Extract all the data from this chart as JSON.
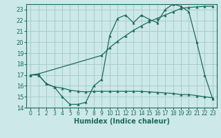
{
  "xlabel": "Humidex (Indice chaleur)",
  "xlim": [
    -0.5,
    23.5
  ],
  "ylim": [
    14,
    23.5
  ],
  "yticks": [
    14,
    15,
    16,
    17,
    18,
    19,
    20,
    21,
    22,
    23
  ],
  "xticks": [
    0,
    1,
    2,
    3,
    4,
    5,
    6,
    7,
    8,
    9,
    10,
    11,
    12,
    13,
    14,
    15,
    16,
    17,
    18,
    19,
    20,
    21,
    22,
    23
  ],
  "bg_color": "#cce8e8",
  "grid_color": "#a8cccc",
  "line_color": "#1a6b5a",
  "line1_x": [
    0,
    1,
    2,
    3,
    4,
    5,
    6,
    7,
    8,
    9,
    10,
    11,
    12,
    13,
    14,
    15,
    16,
    17,
    18,
    19,
    20,
    21,
    22,
    23
  ],
  "line1_y": [
    17.0,
    17.0,
    16.2,
    15.9,
    15.0,
    14.3,
    14.3,
    14.5,
    16.0,
    16.6,
    20.6,
    22.2,
    22.5,
    21.8,
    22.5,
    22.1,
    21.8,
    23.0,
    23.5,
    23.3,
    22.8,
    20.0,
    17.0,
    14.8
  ],
  "line2_x": [
    0,
    1,
    9,
    10,
    11,
    12,
    13,
    14,
    15,
    16,
    17,
    18,
    19,
    20,
    21,
    22,
    23
  ],
  "line2_y": [
    17.0,
    17.1,
    18.8,
    19.5,
    20.1,
    20.6,
    21.1,
    21.5,
    21.9,
    22.2,
    22.5,
    22.8,
    23.1,
    23.2,
    23.25,
    23.3,
    23.3
  ],
  "line3_x": [
    1,
    2,
    3,
    4,
    5,
    6,
    7,
    8,
    9,
    10,
    11,
    12,
    13,
    14,
    15,
    16,
    17,
    18,
    19,
    20,
    21,
    22,
    23
  ],
  "line3_y": [
    17.0,
    16.2,
    15.9,
    15.8,
    15.6,
    15.5,
    15.45,
    15.5,
    15.5,
    15.5,
    15.5,
    15.5,
    15.5,
    15.5,
    15.45,
    15.4,
    15.35,
    15.3,
    15.2,
    15.2,
    15.1,
    15.0,
    14.9
  ]
}
